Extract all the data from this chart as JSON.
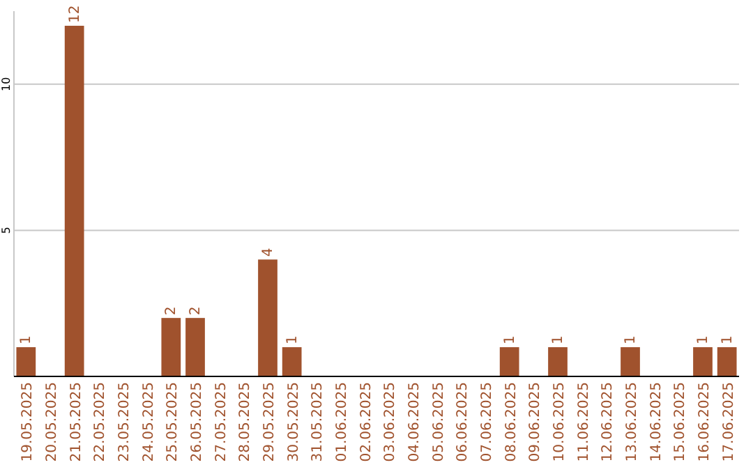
{
  "chart_data": {
    "type": "bar",
    "categories": [
      "19.05.2025",
      "20.05.2025",
      "21.05.2025",
      "22.05.2025",
      "23.05.2025",
      "24.05.2025",
      "25.05.2025",
      "26.05.2025",
      "27.05.2025",
      "28.05.2025",
      "29.05.2025",
      "30.05.2025",
      "31.05.2025",
      "01.06.2025",
      "02.06.2025",
      "03.06.2025",
      "04.06.2025",
      "05.06.2025",
      "06.06.2025",
      "07.06.2025",
      "08.06.2025",
      "09.06.2025",
      "10.06.2025",
      "11.06.2025",
      "12.06.2025",
      "13.06.2025",
      "14.06.2025",
      "15.06.2025",
      "16.06.2025",
      "17.06.2025"
    ],
    "values": [
      1,
      0,
      12,
      0,
      0,
      0,
      2,
      2,
      0,
      0,
      4,
      1,
      0,
      0,
      0,
      0,
      0,
      0,
      0,
      0,
      1,
      0,
      1,
      0,
      0,
      1,
      0,
      0,
      1,
      1
    ],
    "value_labels": [
      "1",
      null,
      "12",
      null,
      null,
      null,
      "2",
      "2",
      null,
      null,
      "4",
      "1",
      null,
      null,
      null,
      null,
      null,
      null,
      null,
      null,
      "1",
      null,
      "1",
      null,
      null,
      "1",
      null,
      null,
      "1",
      "1"
    ],
    "color": "#a0522d",
    "ylim": [
      0,
      12.5
    ],
    "yticks": [
      5,
      10
    ],
    "grid": "y"
  }
}
